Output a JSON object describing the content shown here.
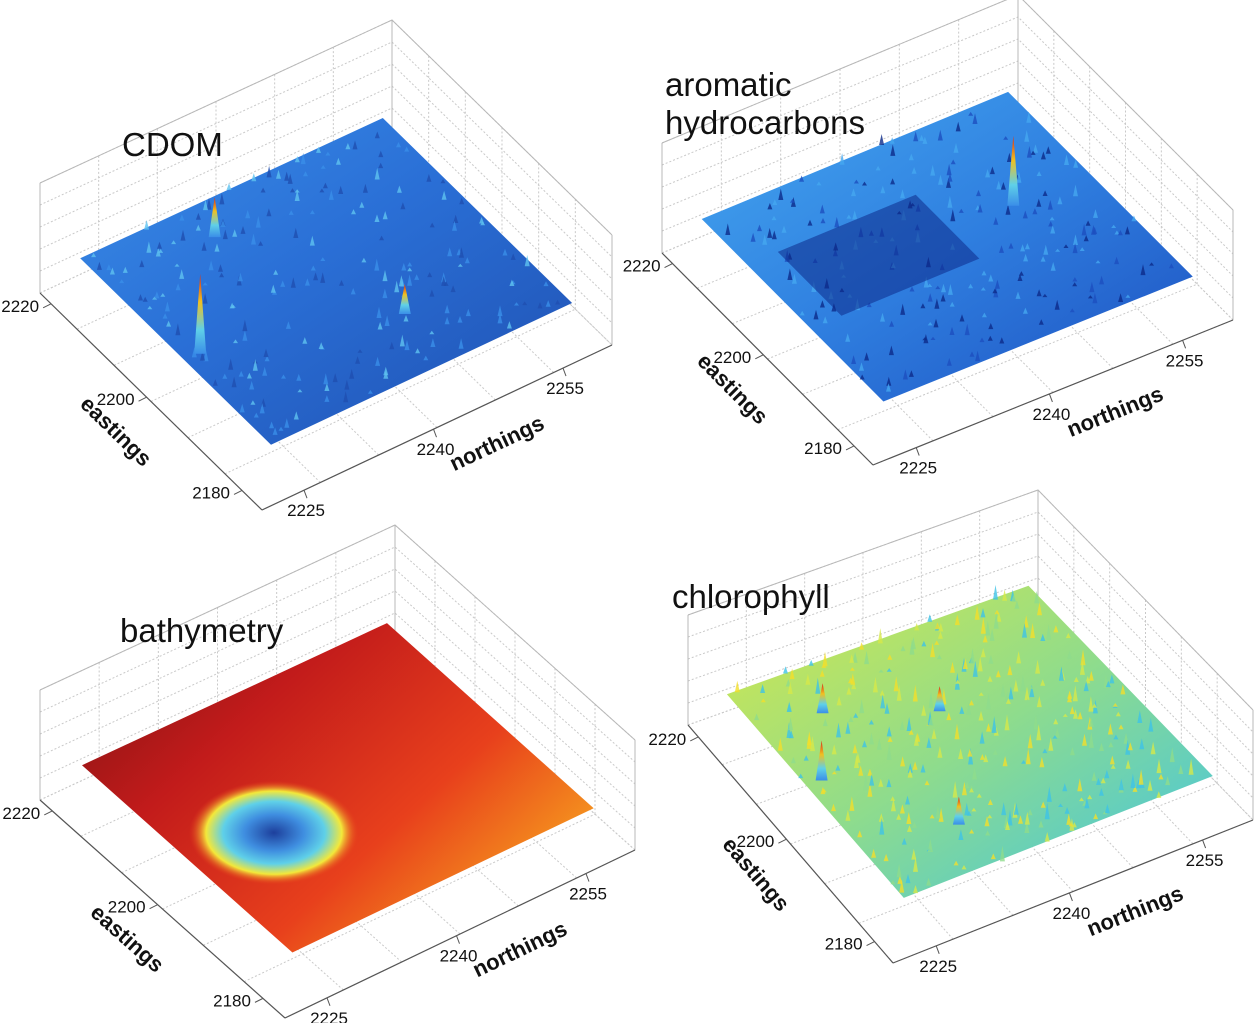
{
  "chart_data": [
    {
      "type": "surface",
      "title": "CDOM",
      "xlabel": "northings",
      "ylabel": "eastings",
      "x_ticks": [
        2225,
        2240,
        2255
      ],
      "y_ticks": [
        2180,
        2200,
        2220
      ],
      "colormap": "jet",
      "surface_colors": [
        "#1f4fb0",
        "#2a6fd6",
        "#3a8ee8",
        "#5fc3f0"
      ],
      "peak_color": "#e03a1e",
      "pattern": "mostly flat blue surface with one sharp peak near the back edge and a few small spikes"
    },
    {
      "type": "surface",
      "title": "aromatic\nhydrocarbons",
      "title_lines": [
        "aromatic",
        "hydrocarbons"
      ],
      "xlabel": "northings",
      "ylabel": "eastings",
      "x_ticks": [
        2225,
        2240,
        2255
      ],
      "y_ticks": [
        2180,
        2200,
        2220
      ],
      "colormap": "jet",
      "surface_colors": [
        "#0c2a8a",
        "#1d4fbf",
        "#2f7fe0",
        "#45a8f0"
      ],
      "peak_color": "#e03a1e",
      "pattern": "rough blue surface with a darker rectangular depression and one spike on the right"
    },
    {
      "type": "surface",
      "title": "bathymetry",
      "xlabel": "northings",
      "ylabel": "eastings",
      "x_ticks": [
        2225,
        2240,
        2255
      ],
      "y_ticks": [
        2180,
        2200,
        2220
      ],
      "colormap": "jet",
      "surface_colors": [
        "#7a1212",
        "#c21b1b",
        "#e8401c",
        "#f7a21e"
      ],
      "depression_colors": [
        "#1d3f9c",
        "#3f8ee0",
        "#5fd0e8",
        "#f3e83a"
      ],
      "pattern": "smooth red to orange plane with a circular blue depression near the back"
    },
    {
      "type": "surface",
      "title": "chlorophyll",
      "xlabel": "northings",
      "ylabel": "eastings",
      "x_ticks": [
        2225,
        2240,
        2255
      ],
      "y_ticks": [
        2180,
        2200,
        2220
      ],
      "colormap": "jet",
      "surface_colors": [
        "#3fc3e6",
        "#8fdc8c",
        "#d6e84a",
        "#f2de2a"
      ],
      "peak_color": "#e04a1e",
      "pattern": "very noisy yellow-cyan surface with many small red-tipped peaks"
    }
  ]
}
